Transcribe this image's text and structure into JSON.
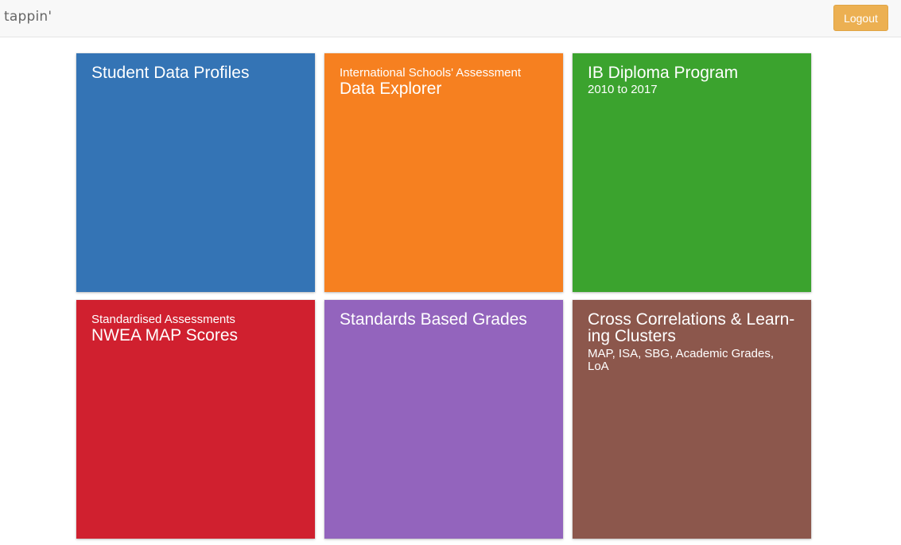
{
  "header": {
    "brand": "tappin'",
    "logout_label": "Logout"
  },
  "tiles": [
    {
      "title": "Student Data Profiles",
      "color": "#3474b5"
    },
    {
      "pre": "International Schools' Assessment",
      "title": "Data Explorer",
      "color": "#f68020"
    },
    {
      "title": "IB Diploma Program",
      "sub": "2010 to 2017",
      "color": "#3ba32e"
    },
    {
      "pre": "Standardised Assessments",
      "title": "NWEA MAP Scores",
      "color": "#d0202f"
    },
    {
      "title": "Standards Based Grades",
      "color": "#9364bd"
    },
    {
      "title": "Cross Correlations & Learn-ing Clusters",
      "sub": "MAP, ISA, SBG, Academic Grades, LoA",
      "color": "#8c574c"
    }
  ]
}
